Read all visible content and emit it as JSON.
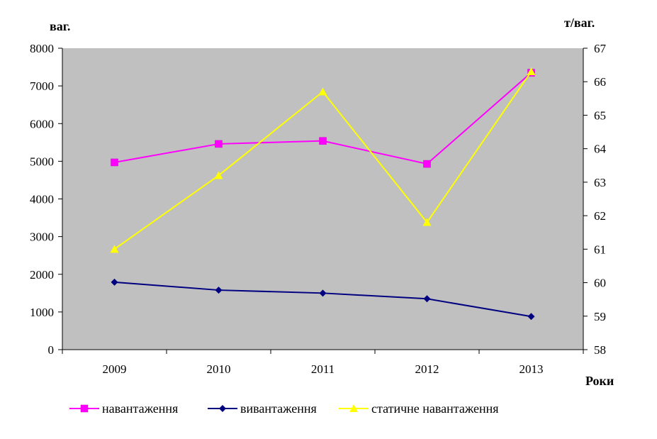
{
  "chart_data": {
    "type": "line",
    "title": "",
    "categories": [
      "2009",
      "2010",
      "2011",
      "2012",
      "2013"
    ],
    "xlabel": "Роки",
    "ylabel_left": "ваг.",
    "ylabel_right": "т/ваг.",
    "y_left": {
      "min": 0,
      "max": 8000,
      "step": 1000
    },
    "y_right": {
      "min": 58,
      "max": 67,
      "step": 1
    },
    "grid": false,
    "plot_background": "#c0c0c0",
    "legend_position": "bottom",
    "series": [
      {
        "name": "навантаження",
        "axis": "left",
        "color": "#ff00ff",
        "marker": "square",
        "values": [
          4970,
          5460,
          5540,
          4930,
          7350
        ]
      },
      {
        "name": "вивантаження",
        "axis": "left",
        "color": "#000080",
        "marker": "diamond",
        "values": [
          1790,
          1580,
          1500,
          1350,
          880
        ]
      },
      {
        "name": "статичне навантаження",
        "axis": "right",
        "color": "#ffff00",
        "marker": "triangle",
        "values": [
          61.0,
          63.2,
          65.7,
          61.8,
          66.3
        ]
      }
    ]
  }
}
